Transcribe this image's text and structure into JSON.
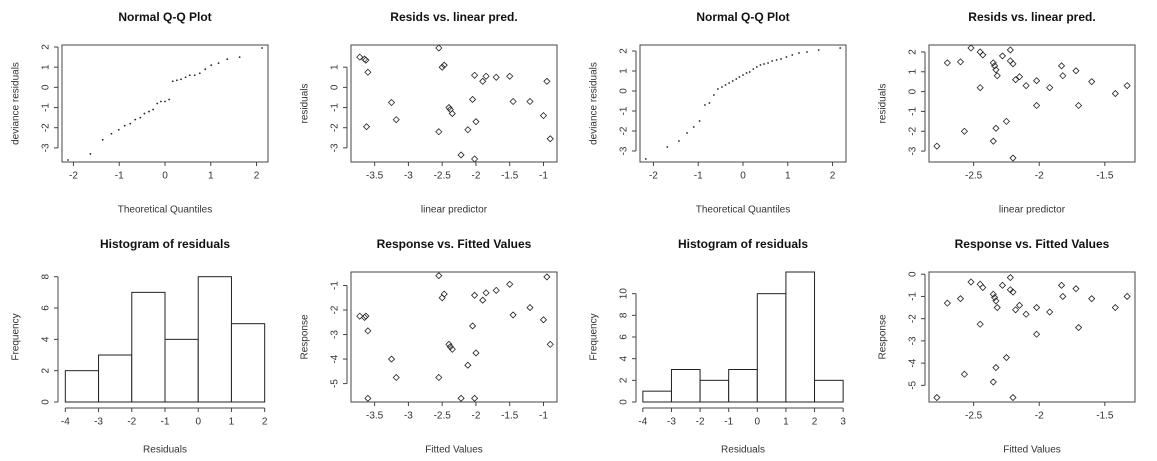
{
  "chart_data": [
    {
      "type": "scatter",
      "marker": "point",
      "title": "Normal Q-Q Plot",
      "xlabel": "Theoretical Quantiles",
      "ylabel": "deviance residuals",
      "x": [
        -2.12,
        -1.63,
        -1.36,
        -1.17,
        -1.01,
        -0.88,
        -0.76,
        -0.65,
        -0.54,
        -0.45,
        -0.35,
        -0.26,
        -0.17,
        -0.09,
        0,
        0.09,
        0.17,
        0.26,
        0.35,
        0.45,
        0.54,
        0.65,
        0.76,
        0.88,
        1.01,
        1.17,
        1.36,
        1.63,
        2.12
      ],
      "values": [
        -3.6,
        -3.3,
        -2.6,
        -2.3,
        -2.1,
        -1.9,
        -1.8,
        -1.6,
        -1.5,
        -1.3,
        -1.2,
        -1.1,
        -0.8,
        -0.7,
        -0.7,
        -0.6,
        0.3,
        0.35,
        0.4,
        0.5,
        0.6,
        0.6,
        0.7,
        0.9,
        1.1,
        1.2,
        1.4,
        1.5,
        1.95
      ],
      "xlim": [
        -2.25,
        2.25
      ],
      "xticks": [
        -2,
        -1,
        0,
        1,
        2
      ],
      "ylim": [
        -3.7,
        2.1
      ],
      "yticks": [
        -3,
        -2,
        -1,
        0,
        1,
        2
      ]
    },
    {
      "type": "scatter",
      "marker": "diamond",
      "title": "Resids vs. linear pred.",
      "xlabel": "linear predictor",
      "ylabel": "residuals",
      "x": [
        -3.72,
        -3.65,
        -3.63,
        -3.6,
        -3.62,
        -3.25,
        -3.18,
        -2.55,
        -2.5,
        -2.47,
        -2.55,
        -2.4,
        -2.38,
        -2.35,
        -2.22,
        -2.12,
        -2.05,
        -2.02,
        -2.0,
        -2.02,
        -1.9,
        -1.85,
        -1.7,
        -1.5,
        -1.45,
        -1.2,
        -1.0,
        -0.95,
        -0.9
      ],
      "values": [
        1.5,
        1.4,
        1.35,
        0.75,
        -1.95,
        -0.75,
        -1.6,
        1.95,
        1.0,
        1.1,
        -2.2,
        -1.0,
        -1.1,
        -1.3,
        -3.35,
        -2.1,
        -0.6,
        0.6,
        -1.7,
        -3.55,
        0.3,
        0.55,
        0.5,
        0.55,
        -0.7,
        -0.7,
        -1.4,
        0.3,
        -2.55
      ],
      "xlim": [
        -3.85,
        -0.8
      ],
      "xticks": [
        -3.5,
        -3.0,
        -2.5,
        -2.0,
        -1.5,
        -1.0
      ],
      "ylim": [
        -3.7,
        2.1
      ],
      "yticks": [
        -3,
        -2,
        -1,
        0,
        1
      ]
    },
    {
      "type": "scatter",
      "marker": "point",
      "title": "Normal Q-Q Plot",
      "xlabel": "Theoretical Quantiles",
      "ylabel": "deviance residuals",
      "x": [
        -2.17,
        -1.69,
        -1.43,
        -1.25,
        -1.1,
        -0.97,
        -0.85,
        -0.75,
        -0.65,
        -0.56,
        -0.47,
        -0.39,
        -0.31,
        -0.23,
        -0.15,
        -0.08,
        0,
        0.08,
        0.15,
        0.23,
        0.31,
        0.39,
        0.47,
        0.56,
        0.65,
        0.75,
        0.85,
        0.97,
        1.1,
        1.25,
        1.43,
        1.69,
        2.17
      ],
      "values": [
        -3.4,
        -2.8,
        -2.5,
        -2.1,
        -1.8,
        -1.5,
        -0.7,
        -0.6,
        -0.2,
        0.1,
        0.2,
        0.3,
        0.4,
        0.5,
        0.6,
        0.7,
        0.8,
        0.9,
        0.95,
        1.1,
        1.2,
        1.3,
        1.35,
        1.4,
        1.5,
        1.55,
        1.6,
        1.7,
        1.8,
        1.9,
        1.95,
        2.05,
        2.15
      ],
      "xlim": [
        -2.3,
        2.3
      ],
      "xticks": [
        -2,
        -1,
        0,
        1,
        2
      ],
      "ylim": [
        -3.55,
        2.3
      ],
      "yticks": [
        -3,
        -2,
        -1,
        0,
        1,
        2
      ]
    },
    {
      "type": "scatter",
      "marker": "diamond",
      "title": "Resids vs. linear pred.",
      "xlabel": "linear predictor",
      "ylabel": "residuals",
      "x": [
        -2.78,
        -2.7,
        -2.6,
        -2.57,
        -2.52,
        -2.45,
        -2.43,
        -2.45,
        -2.35,
        -2.34,
        -2.33,
        -2.32,
        -2.33,
        -2.35,
        -2.28,
        -2.25,
        -2.22,
        -2.22,
        -2.2,
        -2.18,
        -2.2,
        -2.15,
        -2.1,
        -2.02,
        -2.02,
        -1.92,
        -1.83,
        -1.82,
        -1.72,
        -1.7,
        -1.6,
        -1.42,
        -1.33
      ],
      "values": [
        -2.75,
        1.45,
        1.5,
        -2.0,
        2.2,
        2.0,
        1.85,
        0.2,
        1.45,
        1.3,
        1.1,
        0.8,
        -1.85,
        -2.5,
        1.8,
        -1.5,
        2.1,
        1.55,
        1.4,
        0.6,
        -3.35,
        0.75,
        0.3,
        0.55,
        -0.7,
        0.2,
        1.3,
        0.8,
        1.05,
        -0.7,
        0.5,
        -0.1,
        0.3
      ],
      "xlim": [
        -2.84,
        -1.27
      ],
      "xticks": [
        -2.5,
        -2.0,
        -1.5
      ],
      "ylim": [
        -3.55,
        2.35
      ],
      "yticks": [
        -3,
        -2,
        -1,
        0,
        1,
        2
      ]
    },
    {
      "type": "histogram",
      "title": "Histogram of residuals",
      "xlabel": "Residuals",
      "ylabel": "Frequency",
      "bins": [
        -4,
        -3,
        -2,
        -1,
        0,
        1,
        2
      ],
      "values": [
        2,
        3,
        7,
        4,
        8,
        5
      ],
      "xlim": [
        -4.1,
        2.1
      ],
      "xticks": [
        -4,
        -3,
        -2,
        -1,
        0,
        1,
        2
      ],
      "ylim": [
        0,
        8.3
      ],
      "yticks": [
        0,
        2,
        4,
        6,
        8
      ]
    },
    {
      "type": "scatter",
      "marker": "diamond",
      "title": "Response vs. Fitted Values",
      "xlabel": "Fitted Values",
      "ylabel": "Response",
      "x": [
        -3.72,
        -3.65,
        -3.63,
        -3.6,
        -3.6,
        -3.25,
        -3.18,
        -2.55,
        -2.5,
        -2.47,
        -2.55,
        -2.4,
        -2.38,
        -2.35,
        -2.22,
        -2.12,
        -2.05,
        -2.02,
        -2.0,
        -2.02,
        -1.9,
        -1.85,
        -1.7,
        -1.5,
        -1.45,
        -1.2,
        -1.0,
        -0.95,
        -0.9
      ],
      "values": [
        -2.25,
        -2.3,
        -2.25,
        -2.85,
        -5.6,
        -4.0,
        -4.75,
        -0.6,
        -1.5,
        -1.35,
        -4.75,
        -3.4,
        -3.5,
        -3.6,
        -5.6,
        -4.25,
        -2.65,
        -1.4,
        -3.75,
        -5.6,
        -1.6,
        -1.3,
        -1.2,
        -0.95,
        -2.2,
        -1.9,
        -2.4,
        -0.65,
        -3.4
      ],
      "xlim": [
        -3.85,
        -0.8
      ],
      "xticks": [
        -3.5,
        -3.0,
        -2.5,
        -2.0,
        -1.5,
        -1.0
      ],
      "ylim": [
        -5.75,
        -0.45
      ],
      "yticks": [
        -5,
        -4,
        -3,
        -2,
        -1
      ]
    },
    {
      "type": "histogram",
      "title": "Histogram of residuals",
      "xlabel": "Residuals",
      "ylabel": "Frequency",
      "bins": [
        -4,
        -3,
        -2,
        -1,
        0,
        1,
        2,
        3
      ],
      "values": [
        1,
        3,
        2,
        3,
        10,
        12,
        2
      ],
      "xlim": [
        -4.1,
        3.1
      ],
      "xticks": [
        -4,
        -3,
        -2,
        -1,
        0,
        1,
        2,
        3
      ],
      "ylim": [
        0,
        12
      ],
      "yticks": [
        0,
        2,
        4,
        6,
        8,
        10
      ]
    },
    {
      "type": "scatter",
      "marker": "diamond",
      "title": "Response vs. Fitted Values",
      "xlabel": "Fitted Values",
      "ylabel": "Response",
      "x": [
        -2.78,
        -2.7,
        -2.6,
        -2.57,
        -2.52,
        -2.45,
        -2.43,
        -2.45,
        -2.35,
        -2.34,
        -2.33,
        -2.32,
        -2.33,
        -2.35,
        -2.28,
        -2.25,
        -2.22,
        -2.22,
        -2.2,
        -2.18,
        -2.2,
        -2.15,
        -2.1,
        -2.02,
        -2.02,
        -1.92,
        -1.83,
        -1.82,
        -1.72,
        -1.7,
        -1.6,
        -1.42,
        -1.33
      ],
      "values": [
        -5.55,
        -1.3,
        -1.1,
        -4.5,
        -0.35,
        -0.45,
        -0.6,
        -2.25,
        -0.9,
        -1.05,
        -1.2,
        -1.5,
        -4.2,
        -4.85,
        -0.5,
        -3.75,
        -0.15,
        -0.7,
        -0.8,
        -1.6,
        -5.55,
        -1.4,
        -1.8,
        -1.5,
        -2.7,
        -1.7,
        -0.5,
        -1.0,
        -0.65,
        -2.4,
        -1.1,
        -1.5,
        -1.0
      ],
      "xlim": [
        -2.84,
        -1.27
      ],
      "xticks": [
        -2.5,
        -2.0,
        -1.5
      ],
      "ylim": [
        -5.75,
        0.1
      ],
      "yticks": [
        -5,
        -4,
        -3,
        -2,
        -1,
        0
      ]
    }
  ]
}
